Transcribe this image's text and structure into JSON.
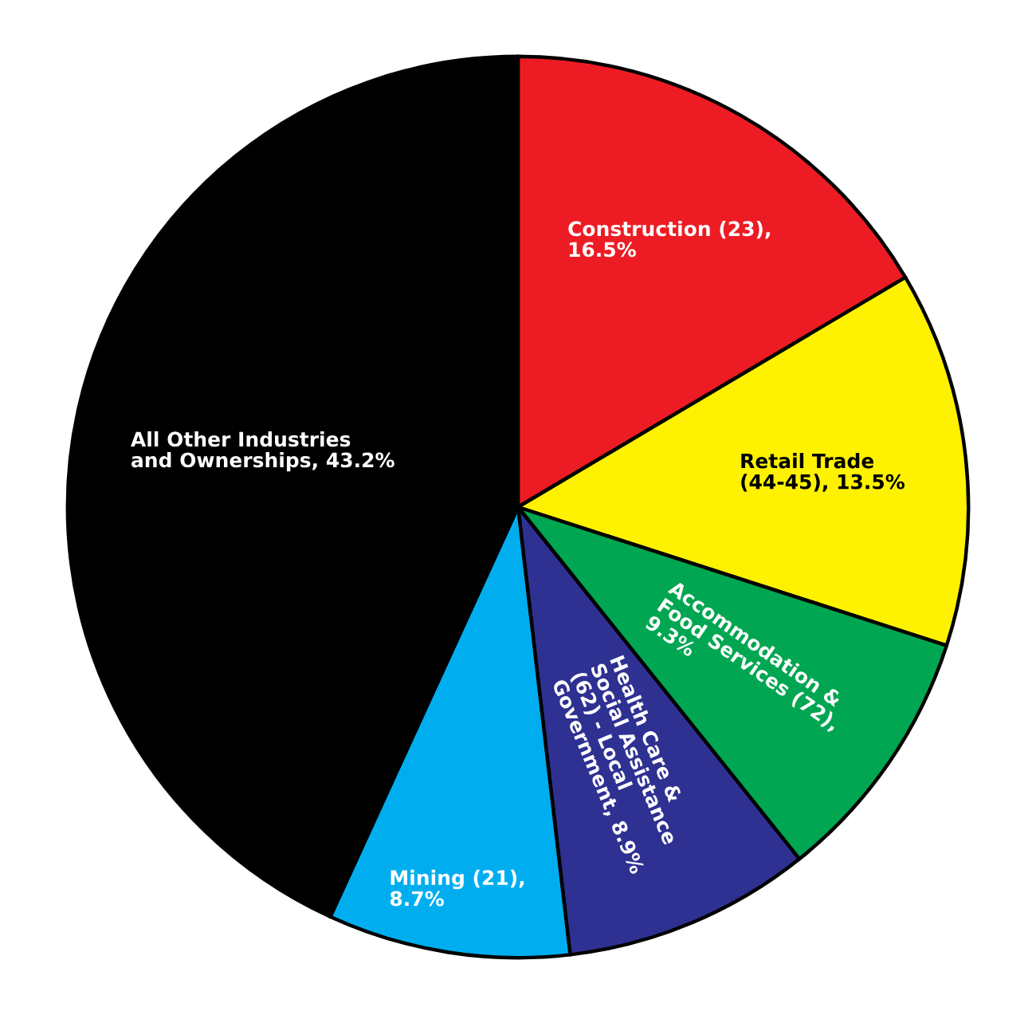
{
  "chart_data": {
    "type": "pie",
    "categories": [
      "Construction (23),\n16.5%",
      "Retail Trade\n(44-45), 13.5%",
      "Accommodation &\nFood Services (72),\n9.3%",
      "Health Care &\nSocial Assistance\n(62) - Local\nGovernment, 8.9%",
      "Mining (21),\n8.7%",
      "All Other Industries\nand Ownerships, 43.2%"
    ],
    "values": [
      16.5,
      13.5,
      9.3,
      8.9,
      8.7,
      43.2
    ],
    "colors": [
      "#ed1c24",
      "#fff200",
      "#00a651",
      "#2e3192",
      "#00aeef",
      "#000000"
    ]
  }
}
